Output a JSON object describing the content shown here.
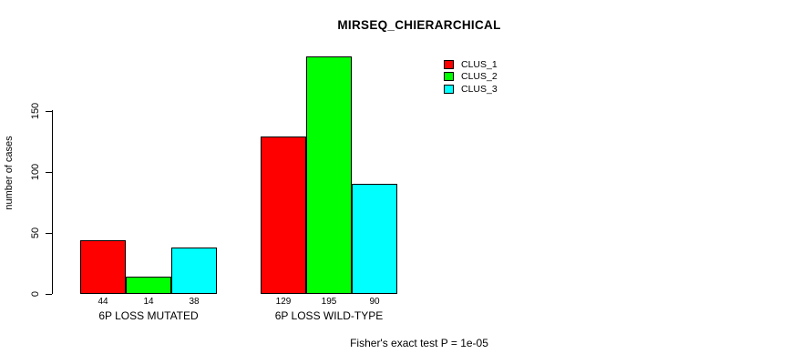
{
  "title": "MIRSEQ_CHIERARCHICAL",
  "footer": "Fisher's exact test P = 1e-05",
  "chart_data": {
    "type": "bar",
    "title": "MIRSEQ_CHIERARCHICAL",
    "xlabel": "",
    "ylabel": "number of cases",
    "categories": [
      "6P LOSS MUTATED",
      "6P LOSS WILD-TYPE"
    ],
    "series": [
      {
        "name": "CLUS_1",
        "color": "#ff0000",
        "values": [
          44,
          129
        ]
      },
      {
        "name": "CLUS_2",
        "color": "#00ff00",
        "values": [
          14,
          195
        ]
      },
      {
        "name": "CLUS_3",
        "color": "#00ffff",
        "values": [
          38,
          90
        ]
      }
    ],
    "bar_value_labels": [
      [
        44,
        14,
        38
      ],
      [
        129,
        195,
        90
      ]
    ],
    "yticks": [
      0,
      50,
      100,
      150
    ],
    "ylim": [
      0,
      150
    ],
    "grid": false,
    "legend_position": "top-right",
    "annotation": "Fisher's exact test P = 1e-05"
  }
}
